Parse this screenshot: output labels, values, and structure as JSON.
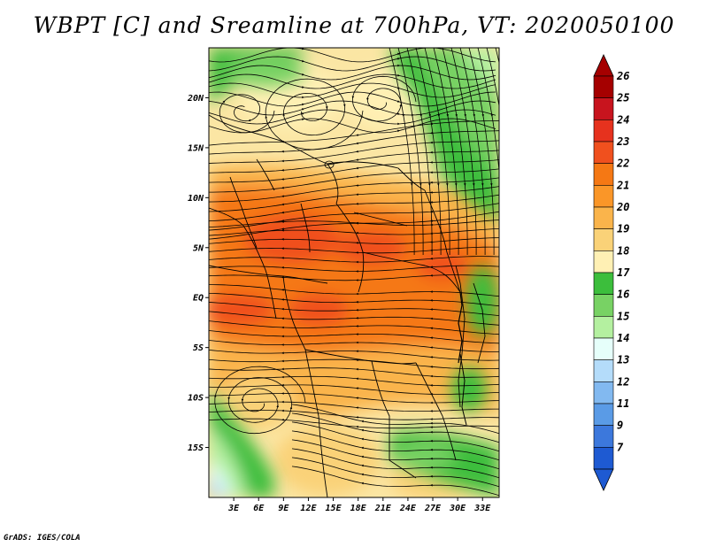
{
  "title": "WBPT [C] and Sreamline at 700hPa, VT: 2020050100",
  "credit": "GrADS: IGES/COLA",
  "map": {
    "lat_labels": [
      "20N",
      "15N",
      "10N",
      "5N",
      "EQ",
      "5S",
      "10S",
      "15S"
    ],
    "lat_values": [
      20,
      15,
      10,
      5,
      0,
      -5,
      -10,
      -15
    ],
    "lon_labels": [
      "3E",
      "6E",
      "9E",
      "12E",
      "15E",
      "18E",
      "21E",
      "24E",
      "27E",
      "30E",
      "33E"
    ],
    "lon_values": [
      3,
      6,
      9,
      12,
      15,
      18,
      21,
      24,
      27,
      30,
      33
    ],
    "lat_range": [
      -20,
      25
    ],
    "lon_range": [
      0,
      35
    ]
  },
  "colorbar": {
    "labels": [
      "26",
      "25",
      "24",
      "23",
      "22",
      "21",
      "20",
      "19",
      "18",
      "17",
      "16",
      "15",
      "14",
      "13",
      "12",
      "11",
      "9",
      "7"
    ],
    "colors": [
      "#a50000",
      "#c8141e",
      "#e6321e",
      "#f0501e",
      "#f57814",
      "#fa9628",
      "#fab44b",
      "#fad278",
      "#fff0b4",
      "#3cbe3c",
      "#78d264",
      "#b4f0a0",
      "#e6fffa",
      "#b4dcfa",
      "#82b9f0",
      "#5a9be6",
      "#3c78dc",
      "#1e5ad2"
    ]
  }
}
